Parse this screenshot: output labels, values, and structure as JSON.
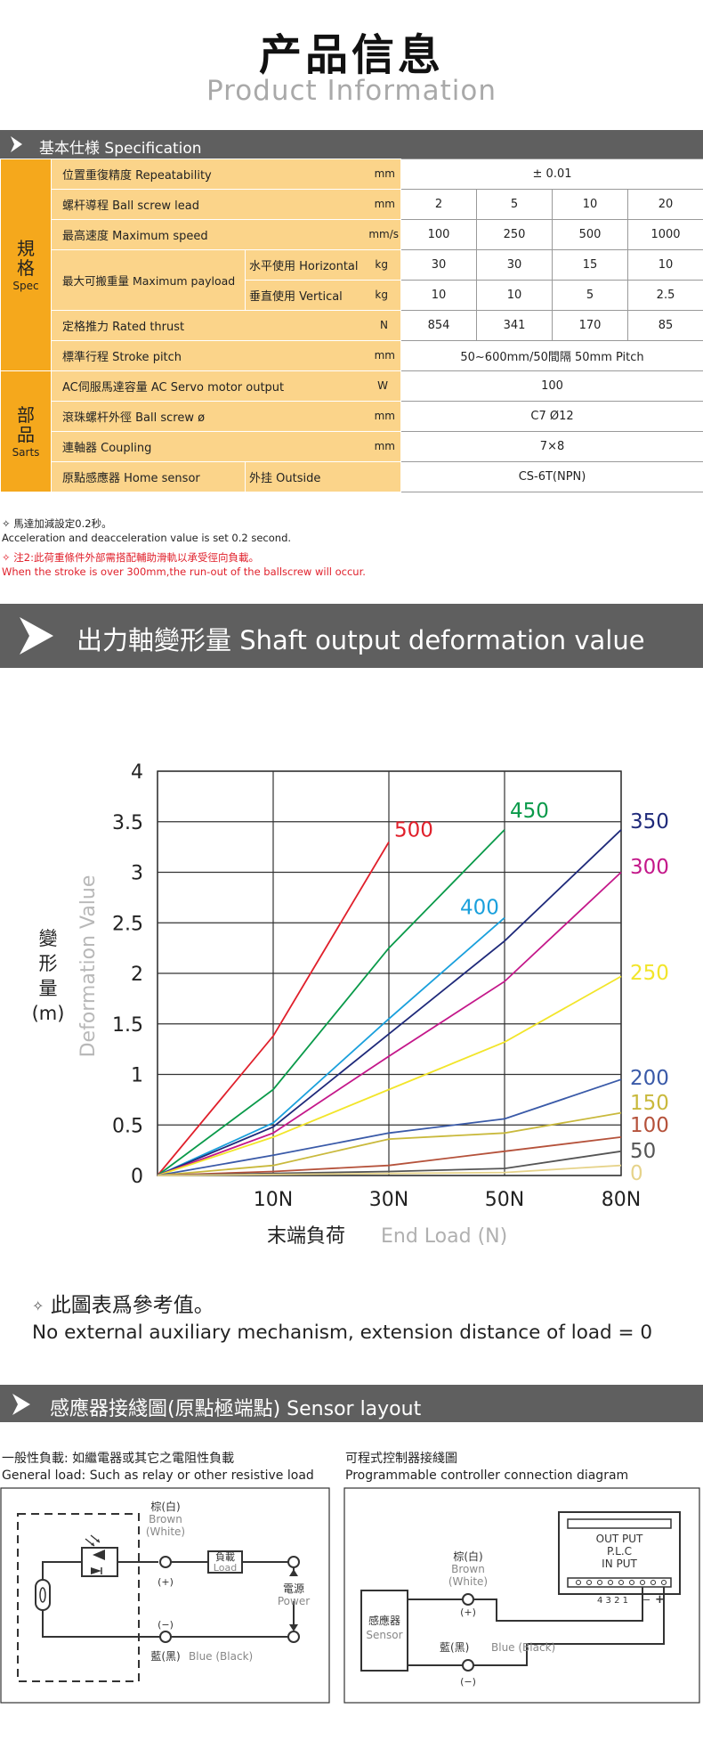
{
  "header": {
    "title": "产品信息",
    "subtitle": "Product Information"
  },
  "spec": {
    "band_title": "基本仕様 Specification",
    "cat_spec": {
      "zh": "規\n格",
      "en": "Spec"
    },
    "cat_parts": {
      "zh": "部\n品",
      "en": "Sarts"
    },
    "rows": {
      "repeat": {
        "label": "位置重復精度 Repeatability",
        "unit": "mm",
        "value": "± 0.01"
      },
      "lead": {
        "label": "螺杆導程 Ball screw lead",
        "unit": "mm",
        "values": [
          "2",
          "5",
          "10",
          "20"
        ]
      },
      "speed": {
        "label": "最高速度 Maximum speed",
        "unit": "mm/s",
        "values": [
          "100",
          "250",
          "500",
          "1000"
        ]
      },
      "payload": {
        "label": "最大可搬重量 Maximum payload",
        "h_label": "水平使用 Horizontal",
        "h_unit": "kg",
        "h_values": [
          "30",
          "30",
          "15",
          "10"
        ],
        "v_label": "垂直使用 Vertical",
        "v_unit": "kg",
        "v_values": [
          "10",
          "10",
          "5",
          "2.5"
        ]
      },
      "thrust": {
        "label": "定格推力 Rated thrust",
        "unit": "N",
        "values": [
          "854",
          "341",
          "170",
          "85"
        ]
      },
      "stroke": {
        "label": "標準行程 Stroke pitch",
        "unit": "mm",
        "value": "50~600mm/50間隔  50mm Pitch"
      },
      "motor": {
        "label": "AC伺服馬達容量 AC Servo motor output",
        "unit": "W",
        "value": "100"
      },
      "screw": {
        "label": "滾珠螺杆外徑 Ball screw ø",
        "unit": "mm",
        "value": "C7 Ø12"
      },
      "coupling": {
        "label": "連軸器 Coupling",
        "unit": "mm",
        "value": "7×8"
      },
      "sensor": {
        "label": "原點感應器 Home sensor",
        "sub_label": "外挂 Outside",
        "value": "CS-6T(NPN)"
      }
    },
    "notes": [
      "✧ 馬達加減設定0.2秒。",
      "Acceleration and deacceleration value is set 0.2 second.",
      "✧ 注2:此荷重條件外部需搭配輔助滑軌以承受徑向負載。",
      "When the stroke is over 300mm,the run-out of the ballscrew will occur."
    ]
  },
  "deform": {
    "band_title": "出力軸變形量 Shaft output deformation value",
    "note_zh": "此圖表爲參考值。",
    "note_en": "No external auxiliary mechanism, extension distance of load = 0"
  },
  "chart_data": {
    "type": "line",
    "title": "",
    "xlabel": "末端負荷  End Load (N)",
    "xlabel_zh": "末端負荷",
    "xlabel_en": "End Load (N)",
    "ylabel_zh": "變\n形\n量\n(m)",
    "ylabel_en": "Deformation Value",
    "x": [
      0,
      10,
      30,
      50,
      80
    ],
    "x_ticks": [
      "10N",
      "30N",
      "50N",
      "80N"
    ],
    "y_ticks": [
      "0",
      "0.5",
      "1",
      "1.5",
      "2",
      "2.5",
      "3",
      "3.5",
      "4"
    ],
    "ylim": [
      0,
      4
    ],
    "grid": true,
    "series": [
      {
        "name": "500",
        "color": "#e0202b",
        "points": [
          [
            0,
            0
          ],
          [
            10,
            1.38
          ],
          [
            30,
            3.3
          ]
        ]
      },
      {
        "name": "450",
        "color": "#0a9a4a",
        "points": [
          [
            0,
            0
          ],
          [
            10,
            0.85
          ],
          [
            30,
            2.25
          ],
          [
            50,
            3.42
          ]
        ]
      },
      {
        "name": "400",
        "color": "#1aa0dc",
        "points": [
          [
            0,
            0
          ],
          [
            10,
            0.52
          ],
          [
            30,
            1.55
          ],
          [
            50,
            2.55
          ]
        ]
      },
      {
        "name": "350",
        "color": "#1f2a7a",
        "points": [
          [
            0,
            0
          ],
          [
            10,
            0.48
          ],
          [
            30,
            1.4
          ],
          [
            50,
            2.32
          ],
          [
            80,
            3.42
          ]
        ]
      },
      {
        "name": "300",
        "color": "#c4188a",
        "points": [
          [
            0,
            0
          ],
          [
            10,
            0.42
          ],
          [
            30,
            1.18
          ],
          [
            50,
            1.92
          ],
          [
            80,
            3.0
          ]
        ]
      },
      {
        "name": "250",
        "color": "#f2e52a",
        "points": [
          [
            0,
            0
          ],
          [
            10,
            0.38
          ],
          [
            30,
            0.85
          ],
          [
            50,
            1.32
          ],
          [
            80,
            1.97
          ]
        ]
      },
      {
        "name": "200",
        "color": "#3a5aa8",
        "points": [
          [
            0,
            0
          ],
          [
            10,
            0.2
          ],
          [
            30,
            0.42
          ],
          [
            50,
            0.56
          ],
          [
            80,
            0.95
          ]
        ]
      },
      {
        "name": "150",
        "color": "#c9b93c",
        "points": [
          [
            0,
            0
          ],
          [
            10,
            0.1
          ],
          [
            30,
            0.36
          ],
          [
            50,
            0.42
          ],
          [
            80,
            0.62
          ]
        ]
      },
      {
        "name": "100",
        "color": "#b5523b",
        "points": [
          [
            0,
            0
          ],
          [
            10,
            0.04
          ],
          [
            30,
            0.1
          ],
          [
            50,
            0.24
          ],
          [
            80,
            0.38
          ]
        ]
      },
      {
        "name": "50",
        "color": "#555555",
        "points": [
          [
            0,
            0
          ],
          [
            10,
            0.02
          ],
          [
            30,
            0.04
          ],
          [
            50,
            0.07
          ],
          [
            80,
            0.24
          ]
        ]
      },
      {
        "name": "0",
        "color": "#e6d38a",
        "points": [
          [
            0,
            0
          ],
          [
            10,
            0.01
          ],
          [
            30,
            0.02
          ],
          [
            50,
            0.03
          ],
          [
            80,
            0.1
          ]
        ]
      }
    ]
  },
  "sensor": {
    "band_title": "感應器接綫圖(原點極端點) Sensor layout",
    "left_title_zh": "一般性負載: 如繼電器或其它之電阻性負載",
    "left_title_en": "General load: Such as relay or other resistive load",
    "right_title_zh": "可程式控制器接綫圖",
    "right_title_en": "Programmable controller connection diagram",
    "brown_zh": "棕(白)",
    "brown_en": "Brown",
    "white_en": "(White)",
    "load_zh": "負載",
    "load_en": "Load",
    "power_zh": "電源",
    "power_en": "Power",
    "plus": "(+)",
    "minus": "(−)",
    "blue_zh": "藍(黑)",
    "blue_en": "Blue (Black)",
    "sensor_zh": "感應器",
    "sensor_en": "Sensor",
    "plc_out": "OUT PUT",
    "plc_name": "P.L.C",
    "plc_in": "IN PUT",
    "plc_pins": "4 3 2 1",
    "plc_minus": "−",
    "plc_plus": "+"
  }
}
